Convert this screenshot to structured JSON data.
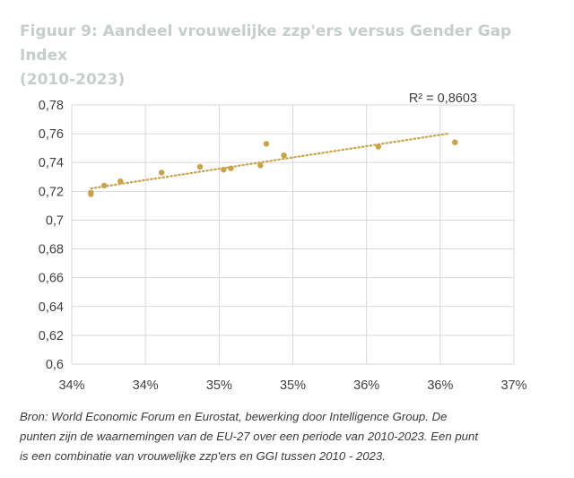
{
  "page": {
    "title_line1": "Figuur 9: Aandeel vrouwelijke zzp'ers versus Gender Gap Index",
    "title_line2": "(2010-2023)",
    "source_lines": [
      "Bron: World Economic Forum en Eurostat, bewerking door Intelligence Group. De",
      "punten zijn de waarnemingen van de EU-27 over een periode van 2010-2023. Een punt",
      "is een combinatie van vrouwelijke zzp'ers en GGI tussen 2010 - 2023."
    ]
  },
  "colors": {
    "points": "#c9a24e",
    "trendline": "#c9a24e",
    "grid": "#d9d9d9",
    "title": "#c5cdcd",
    "axis_text": "#404040"
  },
  "chart_data": {
    "type": "scatter",
    "title": "",
    "xlabel": "",
    "ylabel": "",
    "xlim": [
      0.34,
      0.37
    ],
    "ylim": [
      0.6,
      0.78
    ],
    "xticks": [
      0.34,
      0.345,
      0.35,
      0.355,
      0.36,
      0.365,
      0.37
    ],
    "xtick_labels": [
      "34%",
      "34%",
      "35%",
      "35%",
      "36%",
      "36%",
      "37%"
    ],
    "yticks": [
      0.6,
      0.62,
      0.64,
      0.66,
      0.68,
      0.7,
      0.72,
      0.74,
      0.76,
      0.78
    ],
    "ytick_labels": [
      "0,6",
      "0,62",
      "0,64",
      "0,66",
      "0,68",
      "0,7",
      "0,72",
      "0,74",
      "0,76",
      "0,78"
    ],
    "grid": true,
    "legend": "none",
    "points": [
      {
        "x": 0.3413,
        "y": 0.718
      },
      {
        "x": 0.3413,
        "y": 0.719
      },
      {
        "x": 0.3422,
        "y": 0.724
      },
      {
        "x": 0.3433,
        "y": 0.727
      },
      {
        "x": 0.3461,
        "y": 0.733
      },
      {
        "x": 0.3487,
        "y": 0.737
      },
      {
        "x": 0.3503,
        "y": 0.735
      },
      {
        "x": 0.3508,
        "y": 0.736
      },
      {
        "x": 0.3528,
        "y": 0.738
      },
      {
        "x": 0.3532,
        "y": 0.753
      },
      {
        "x": 0.3544,
        "y": 0.745
      },
      {
        "x": 0.3608,
        "y": 0.751
      },
      {
        "x": 0.366,
        "y": 0.754
      }
    ],
    "trendline": {
      "type": "linear",
      "style": "dotted",
      "x_start": 0.3413,
      "y_start": 0.722,
      "x_end": 0.3655,
      "y_end": 0.76,
      "r2_label": "R² = 0,8603"
    }
  }
}
